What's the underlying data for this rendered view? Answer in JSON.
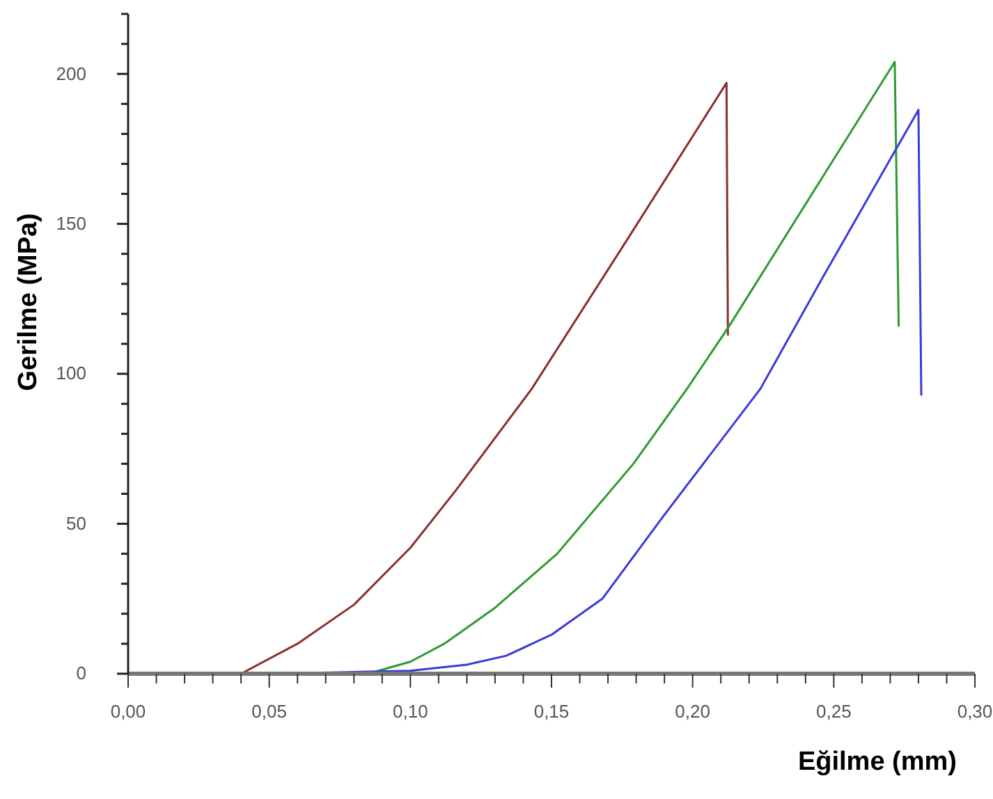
{
  "chart_data": {
    "type": "line",
    "xlabel": "Eğilme (mm)",
    "ylabel": "Gerilme (MPa)",
    "xlim": [
      0,
      0.3
    ],
    "ylim": [
      0,
      220
    ],
    "xticks": [
      {
        "value": 0,
        "label": "0,00"
      },
      {
        "value": 0.01,
        "label": null
      },
      {
        "value": 0.02,
        "label": null
      },
      {
        "value": 0.03,
        "label": null
      },
      {
        "value": 0.04,
        "label": null
      },
      {
        "value": 0.05,
        "label": "0,05"
      },
      {
        "value": 0.06,
        "label": null
      },
      {
        "value": 0.07,
        "label": null
      },
      {
        "value": 0.08,
        "label": null
      },
      {
        "value": 0.09,
        "label": null
      },
      {
        "value": 0.1,
        "label": "0,10"
      },
      {
        "value": 0.11,
        "label": null
      },
      {
        "value": 0.12,
        "label": null
      },
      {
        "value": 0.13,
        "label": null
      },
      {
        "value": 0.14,
        "label": null
      },
      {
        "value": 0.15,
        "label": "0,15"
      },
      {
        "value": 0.16,
        "label": null
      },
      {
        "value": 0.17,
        "label": null
      },
      {
        "value": 0.18,
        "label": null
      },
      {
        "value": 0.19,
        "label": null
      },
      {
        "value": 0.2,
        "label": "0,20"
      },
      {
        "value": 0.21,
        "label": null
      },
      {
        "value": 0.22,
        "label": null
      },
      {
        "value": 0.23,
        "label": null
      },
      {
        "value": 0.24,
        "label": null
      },
      {
        "value": 0.25,
        "label": "0,25"
      },
      {
        "value": 0.26,
        "label": null
      },
      {
        "value": 0.27,
        "label": null
      },
      {
        "value": 0.28,
        "label": null
      },
      {
        "value": 0.29,
        "label": null
      },
      {
        "value": 0.3,
        "label": "0,30"
      }
    ],
    "yticks": [
      0,
      {
        "value": 10,
        "label": null
      },
      {
        "value": 20,
        "label": null
      },
      {
        "value": 30,
        "label": null
      },
      {
        "value": 40,
        "label": null
      },
      50,
      {
        "value": 60,
        "label": null
      },
      {
        "value": 70,
        "label": null
      },
      {
        "value": 80,
        "label": null
      },
      {
        "value": 90,
        "label": null
      },
      100,
      {
        "value": 110,
        "label": null
      },
      {
        "value": 120,
        "label": null
      },
      {
        "value": 130,
        "label": null
      },
      {
        "value": 140,
        "label": null
      },
      150,
      {
        "value": 160,
        "label": null
      },
      {
        "value": 170,
        "label": null
      },
      {
        "value": 180,
        "label": null
      },
      {
        "value": 190,
        "label": null
      },
      200,
      {
        "value": 210,
        "label": null
      },
      {
        "value": 220,
        "label": null
      }
    ],
    "grid": false,
    "marker": "none",
    "line_style": "solid",
    "series": [
      {
        "color": "#8b2e2e",
        "x": [
          0.04,
          0.06,
          0.08,
          0.1,
          0.116,
          0.143,
          0.177,
          0.212,
          0.2125
        ],
        "values": [
          0,
          10,
          23,
          42,
          61,
          95,
          145,
          197,
          113
        ]
      },
      {
        "color": "#2e9a2e",
        "x": [
          0.085,
          0.1,
          0.112,
          0.13,
          0.152,
          0.179,
          0.198,
          0.213,
          0.2716,
          0.273
        ],
        "values": [
          0,
          4,
          10,
          22,
          40,
          70,
          95,
          116,
          204,
          116
        ]
      },
      {
        "color": "#3a3ad8",
        "x": [
          0,
          0.05,
          0.1,
          0.12,
          0.134,
          0.15,
          0.168,
          0.19,
          0.224,
          0.246,
          0.28,
          0.281
        ],
        "values": [
          0,
          0,
          1,
          3,
          6,
          13,
          25,
          53,
          95,
          132,
          188,
          93
        ]
      }
    ]
  }
}
